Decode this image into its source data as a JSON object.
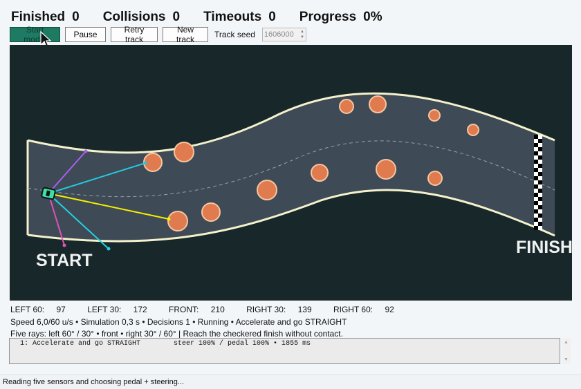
{
  "stats": [
    {
      "label": "Finished",
      "value": "0"
    },
    {
      "label": "Collisions",
      "value": "0"
    },
    {
      "label": "Timeouts",
      "value": "0"
    },
    {
      "label": "Progress",
      "value": "0%"
    }
  ],
  "controls": {
    "start_label": "Start model",
    "pause_label": "Pause",
    "retry_label": "Retry track",
    "new_label": "New track",
    "seed_label": "Track seed",
    "seed_value": "1606000"
  },
  "track": {
    "start_text": "START",
    "finish_text": "FINISH",
    "colors": {
      "background": "#18282a",
      "road": "#3e4a55",
      "edge": "#f4f1cc",
      "obstacle": "#e07a4f",
      "car": "#3fe0a5"
    }
  },
  "sensors": [
    {
      "label": "LEFT 60:",
      "value": "97",
      "color": "#a85ff0"
    },
    {
      "label": "LEFT 30:",
      "value": "172",
      "color": "#24c7e0"
    },
    {
      "label": "FRONT:",
      "value": "210",
      "color": "#f4f000"
    },
    {
      "label": "RIGHT 30:",
      "value": "139",
      "color": "#23d0e0"
    },
    {
      "label": "RIGHT 60:",
      "value": "92",
      "color": "#e052b8"
    }
  ],
  "status_line": "Speed 6,0/60 u/s • Simulation 0,3 s • Decisions 1 • Running • Accelerate and go STRAIGHT",
  "help_line": "Five rays: left 60° / 30° • front • right 30° / 60°    |    Reach the checkered finish without contact.",
  "log_lines": [
    "1: Accelerate and go STRAIGHT        steer 100% / pedal 100% • 1855 ms"
  ],
  "footer": "Reading five sensors and choosing pedal + steering..."
}
